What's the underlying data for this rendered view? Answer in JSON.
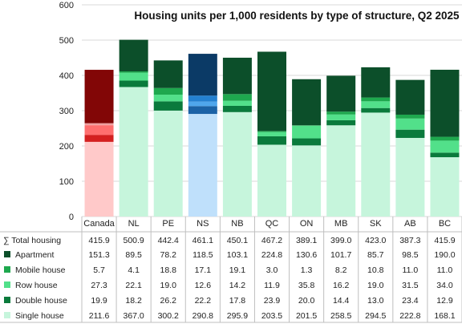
{
  "chart_data": {
    "type": "bar",
    "stacked": true,
    "title": "Housing units per 1,000 residents by type of structure, Q2 2025",
    "xlabel": "",
    "ylabel": "",
    "ylim": [
      0,
      600
    ],
    "yticks": [
      0,
      100,
      200,
      300,
      400,
      500,
      600
    ],
    "grid": true,
    "legend_placement": "data-table-left",
    "categories": [
      "Canada",
      "NL",
      "PE",
      "NS",
      "NB",
      "QC",
      "ON",
      "MB",
      "SK",
      "AB",
      "BC"
    ],
    "totals": {
      "label": "∑ Total housing",
      "values": [
        "415.9",
        "500.9",
        "442.4",
        "461.1",
        "450.1",
        "467.2",
        "389.1",
        "399.0",
        "423.0",
        "387.3",
        "415.9"
      ]
    },
    "series": [
      {
        "name": "Single house",
        "key": "single",
        "values": [
          211.6,
          367.0,
          300.2,
          290.8,
          295.9,
          203.5,
          201.5,
          258.5,
          294.5,
          222.8,
          168.1
        ],
        "labels": [
          "211.6",
          "367.0",
          "300.2",
          "290.8",
          "295.9",
          "203.5",
          "201.5",
          "258.5",
          "294.5",
          "222.8",
          "168.1"
        ]
      },
      {
        "name": "Double house",
        "key": "double",
        "values": [
          19.9,
          18.2,
          26.2,
          22.2,
          17.8,
          23.9,
          20.0,
          14.4,
          13.0,
          23.4,
          12.9
        ],
        "labels": [
          "19.9",
          "18.2",
          "26.2",
          "22.2",
          "17.8",
          "23.9",
          "20.0",
          "14.4",
          "13.0",
          "23.4",
          "12.9"
        ]
      },
      {
        "name": "Row house",
        "key": "row",
        "values": [
          27.3,
          22.1,
          19.0,
          12.6,
          14.2,
          11.9,
          35.8,
          16.2,
          19.0,
          31.5,
          34.0
        ],
        "labels": [
          "27.3",
          "22.1",
          "19.0",
          "12.6",
          "14.2",
          "11.9",
          "35.8",
          "16.2",
          "19.0",
          "31.5",
          "34.0"
        ]
      },
      {
        "name": "Mobile house",
        "key": "mobile",
        "values": [
          5.7,
          4.1,
          18.8,
          17.1,
          19.1,
          3.0,
          1.3,
          8.2,
          10.8,
          11.0,
          11.0
        ],
        "labels": [
          "5.7",
          "4.1",
          "18.8",
          "17.1",
          "19.1",
          "3.0",
          "1.3",
          "8.2",
          "10.8",
          "11.0",
          "11.0"
        ]
      },
      {
        "name": "Apartment",
        "key": "apartment",
        "values": [
          151.3,
          89.5,
          78.2,
          118.5,
          103.1,
          224.8,
          130.6,
          101.7,
          85.7,
          98.5,
          190.0
        ],
        "labels": [
          "151.3",
          "89.5",
          "78.2",
          "118.5",
          "103.1",
          "224.8",
          "130.6",
          "101.7",
          "85.7",
          "98.5",
          "190.0"
        ]
      }
    ],
    "colors": {
      "default": {
        "single": "#c6f5dc",
        "double": "#0a7a3c",
        "row": "#52e08a",
        "mobile": "#1ea84e",
        "apartment": "#0c4f2a"
      },
      "Canada": {
        "single": "#ffc9c9",
        "double": "#d42020",
        "row": "#ff6f6f",
        "mobile": "#f0a0a0",
        "apartment": "#820606"
      },
      "NS": {
        "single": "#bfe0fb",
        "double": "#1b62a6",
        "row": "#4fa6ec",
        "mobile": "#2480d0",
        "apartment": "#0b3a66"
      },
      "legend": {
        "single": "#c6f5dc",
        "double": "#0a7a3c",
        "row": "#52e08a",
        "mobile": "#1ea84e",
        "apartment": "#0c4f2a"
      },
      "grid": "#d9d9d9",
      "table_line": "#bfbfbf"
    }
  }
}
